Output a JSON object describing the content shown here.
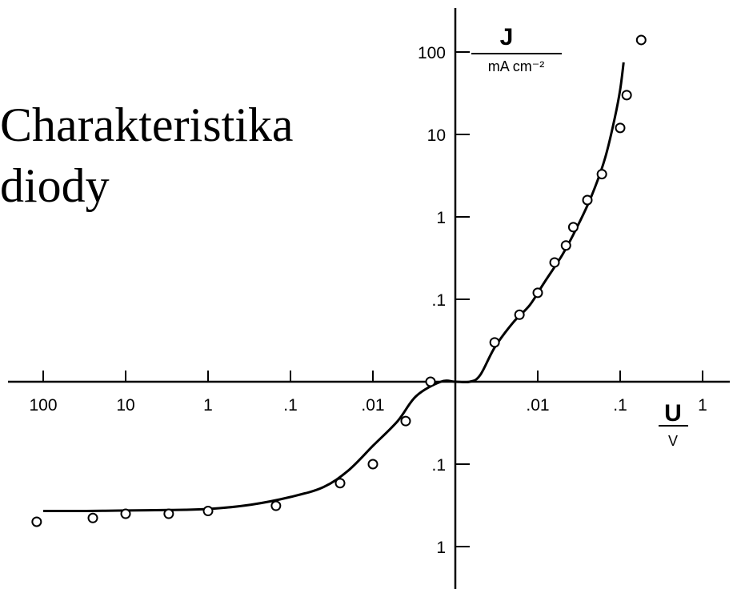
{
  "slide": {
    "title_line1": "Charakteristika",
    "title_line2": "diody"
  },
  "chart_data": {
    "type": "scatter",
    "title": "",
    "x_axis": {
      "symbol": "U",
      "unit": "V",
      "scale": "symmetric-log",
      "tick_labels_negative": [
        "100",
        "10",
        "1",
        ".1",
        ".01"
      ],
      "tick_labels_positive": [
        ".01",
        ".1",
        "1"
      ]
    },
    "y_axis": {
      "symbol": "J",
      "unit": "mA cm⁻²",
      "scale": "symmetric-log",
      "tick_labels_positive": [
        "100",
        "10",
        "1",
        ".1"
      ],
      "tick_labels_negative": [
        ".1",
        "1"
      ]
    },
    "series": [
      {
        "kind": "measured-points",
        "marker": "open-circle",
        "points": [
          {
            "x": -120,
            "y": -0.5
          },
          {
            "x": -25,
            "y": -0.45
          },
          {
            "x": -10,
            "y": -0.4
          },
          {
            "x": -3,
            "y": -0.4
          },
          {
            "x": -1,
            "y": -0.37
          },
          {
            "x": -0.15,
            "y": -0.32
          },
          {
            "x": -0.025,
            "y": -0.17
          },
          {
            "x": -0.01,
            "y": -0.1
          },
          {
            "x": -0.004,
            "y": -0.03
          },
          {
            "x": -0.002,
            "y": 0.003
          },
          {
            "x": 0.003,
            "y": 0.03
          },
          {
            "x": 0.006,
            "y": 0.065
          },
          {
            "x": 0.01,
            "y": 0.12
          },
          {
            "x": 0.016,
            "y": 0.28
          },
          {
            "x": 0.022,
            "y": 0.45
          },
          {
            "x": 0.027,
            "y": 0.75
          },
          {
            "x": 0.04,
            "y": 1.6
          },
          {
            "x": 0.06,
            "y": 3.3
          },
          {
            "x": 0.1,
            "y": 12
          },
          {
            "x": 0.12,
            "y": 30
          },
          {
            "x": 0.18,
            "y": 140
          }
        ]
      },
      {
        "kind": "fit-curve",
        "style": "solid-line",
        "points": [
          {
            "x": -100,
            "y": -0.37
          },
          {
            "x": -30,
            "y": -0.37
          },
          {
            "x": -10,
            "y": -0.365
          },
          {
            "x": -3,
            "y": -0.36
          },
          {
            "x": -1,
            "y": -0.35
          },
          {
            "x": -0.3,
            "y": -0.31
          },
          {
            "x": -0.1,
            "y": -0.25
          },
          {
            "x": -0.04,
            "y": -0.19
          },
          {
            "x": -0.02,
            "y": -0.12
          },
          {
            "x": -0.01,
            "y": -0.06
          },
          {
            "x": -0.005,
            "y": -0.03
          },
          {
            "x": -0.003,
            "y": -0.015
          },
          {
            "x": -0.0015,
            "y": -0.003
          },
          {
            "x": 0,
            "y": 0
          },
          {
            "x": 0.0015,
            "y": 0.003
          },
          {
            "x": 0.002,
            "y": 0.012
          },
          {
            "x": 0.003,
            "y": 0.026
          },
          {
            "x": 0.005,
            "y": 0.052
          },
          {
            "x": 0.008,
            "y": 0.085
          },
          {
            "x": 0.012,
            "y": 0.16
          },
          {
            "x": 0.02,
            "y": 0.35
          },
          {
            "x": 0.03,
            "y": 0.75
          },
          {
            "x": 0.045,
            "y": 1.8
          },
          {
            "x": 0.065,
            "y": 5
          },
          {
            "x": 0.085,
            "y": 15
          },
          {
            "x": 0.1,
            "y": 35
          },
          {
            "x": 0.11,
            "y": 75
          }
        ]
      }
    ],
    "grid": false,
    "legend": "none"
  }
}
